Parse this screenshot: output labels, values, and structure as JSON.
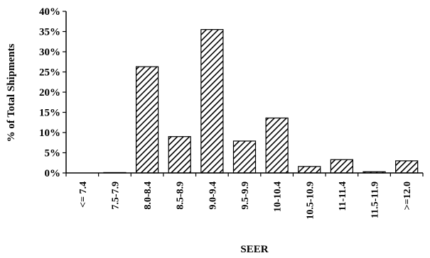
{
  "chart_data": {
    "type": "bar",
    "title": "",
    "xlabel": "SEER",
    "ylabel": "% of Total Shipments",
    "categories": [
      "<= 7.4",
      "7.5-7.9",
      "8.0-8.4",
      "8.5-8.9",
      "9.0-9.4",
      "9.5-9.9",
      "10-10.4",
      "10.5-10.9",
      "11-11.4",
      "11.5-11.9",
      ">=12.0"
    ],
    "values": [
      0,
      0.1,
      26.3,
      9.0,
      35.5,
      7.9,
      13.6,
      1.6,
      3.3,
      0.3,
      3.0
    ],
    "ylim": [
      0,
      40
    ],
    "yticks": [
      "0%",
      "5%",
      "10%",
      "15%",
      "20%",
      "25%",
      "30%",
      "35%",
      "40%"
    ],
    "grid": false,
    "bar_fill": "diagonal-hatch",
    "colors": {
      "bar_stroke": "#000000",
      "background": "#ffffff"
    }
  }
}
